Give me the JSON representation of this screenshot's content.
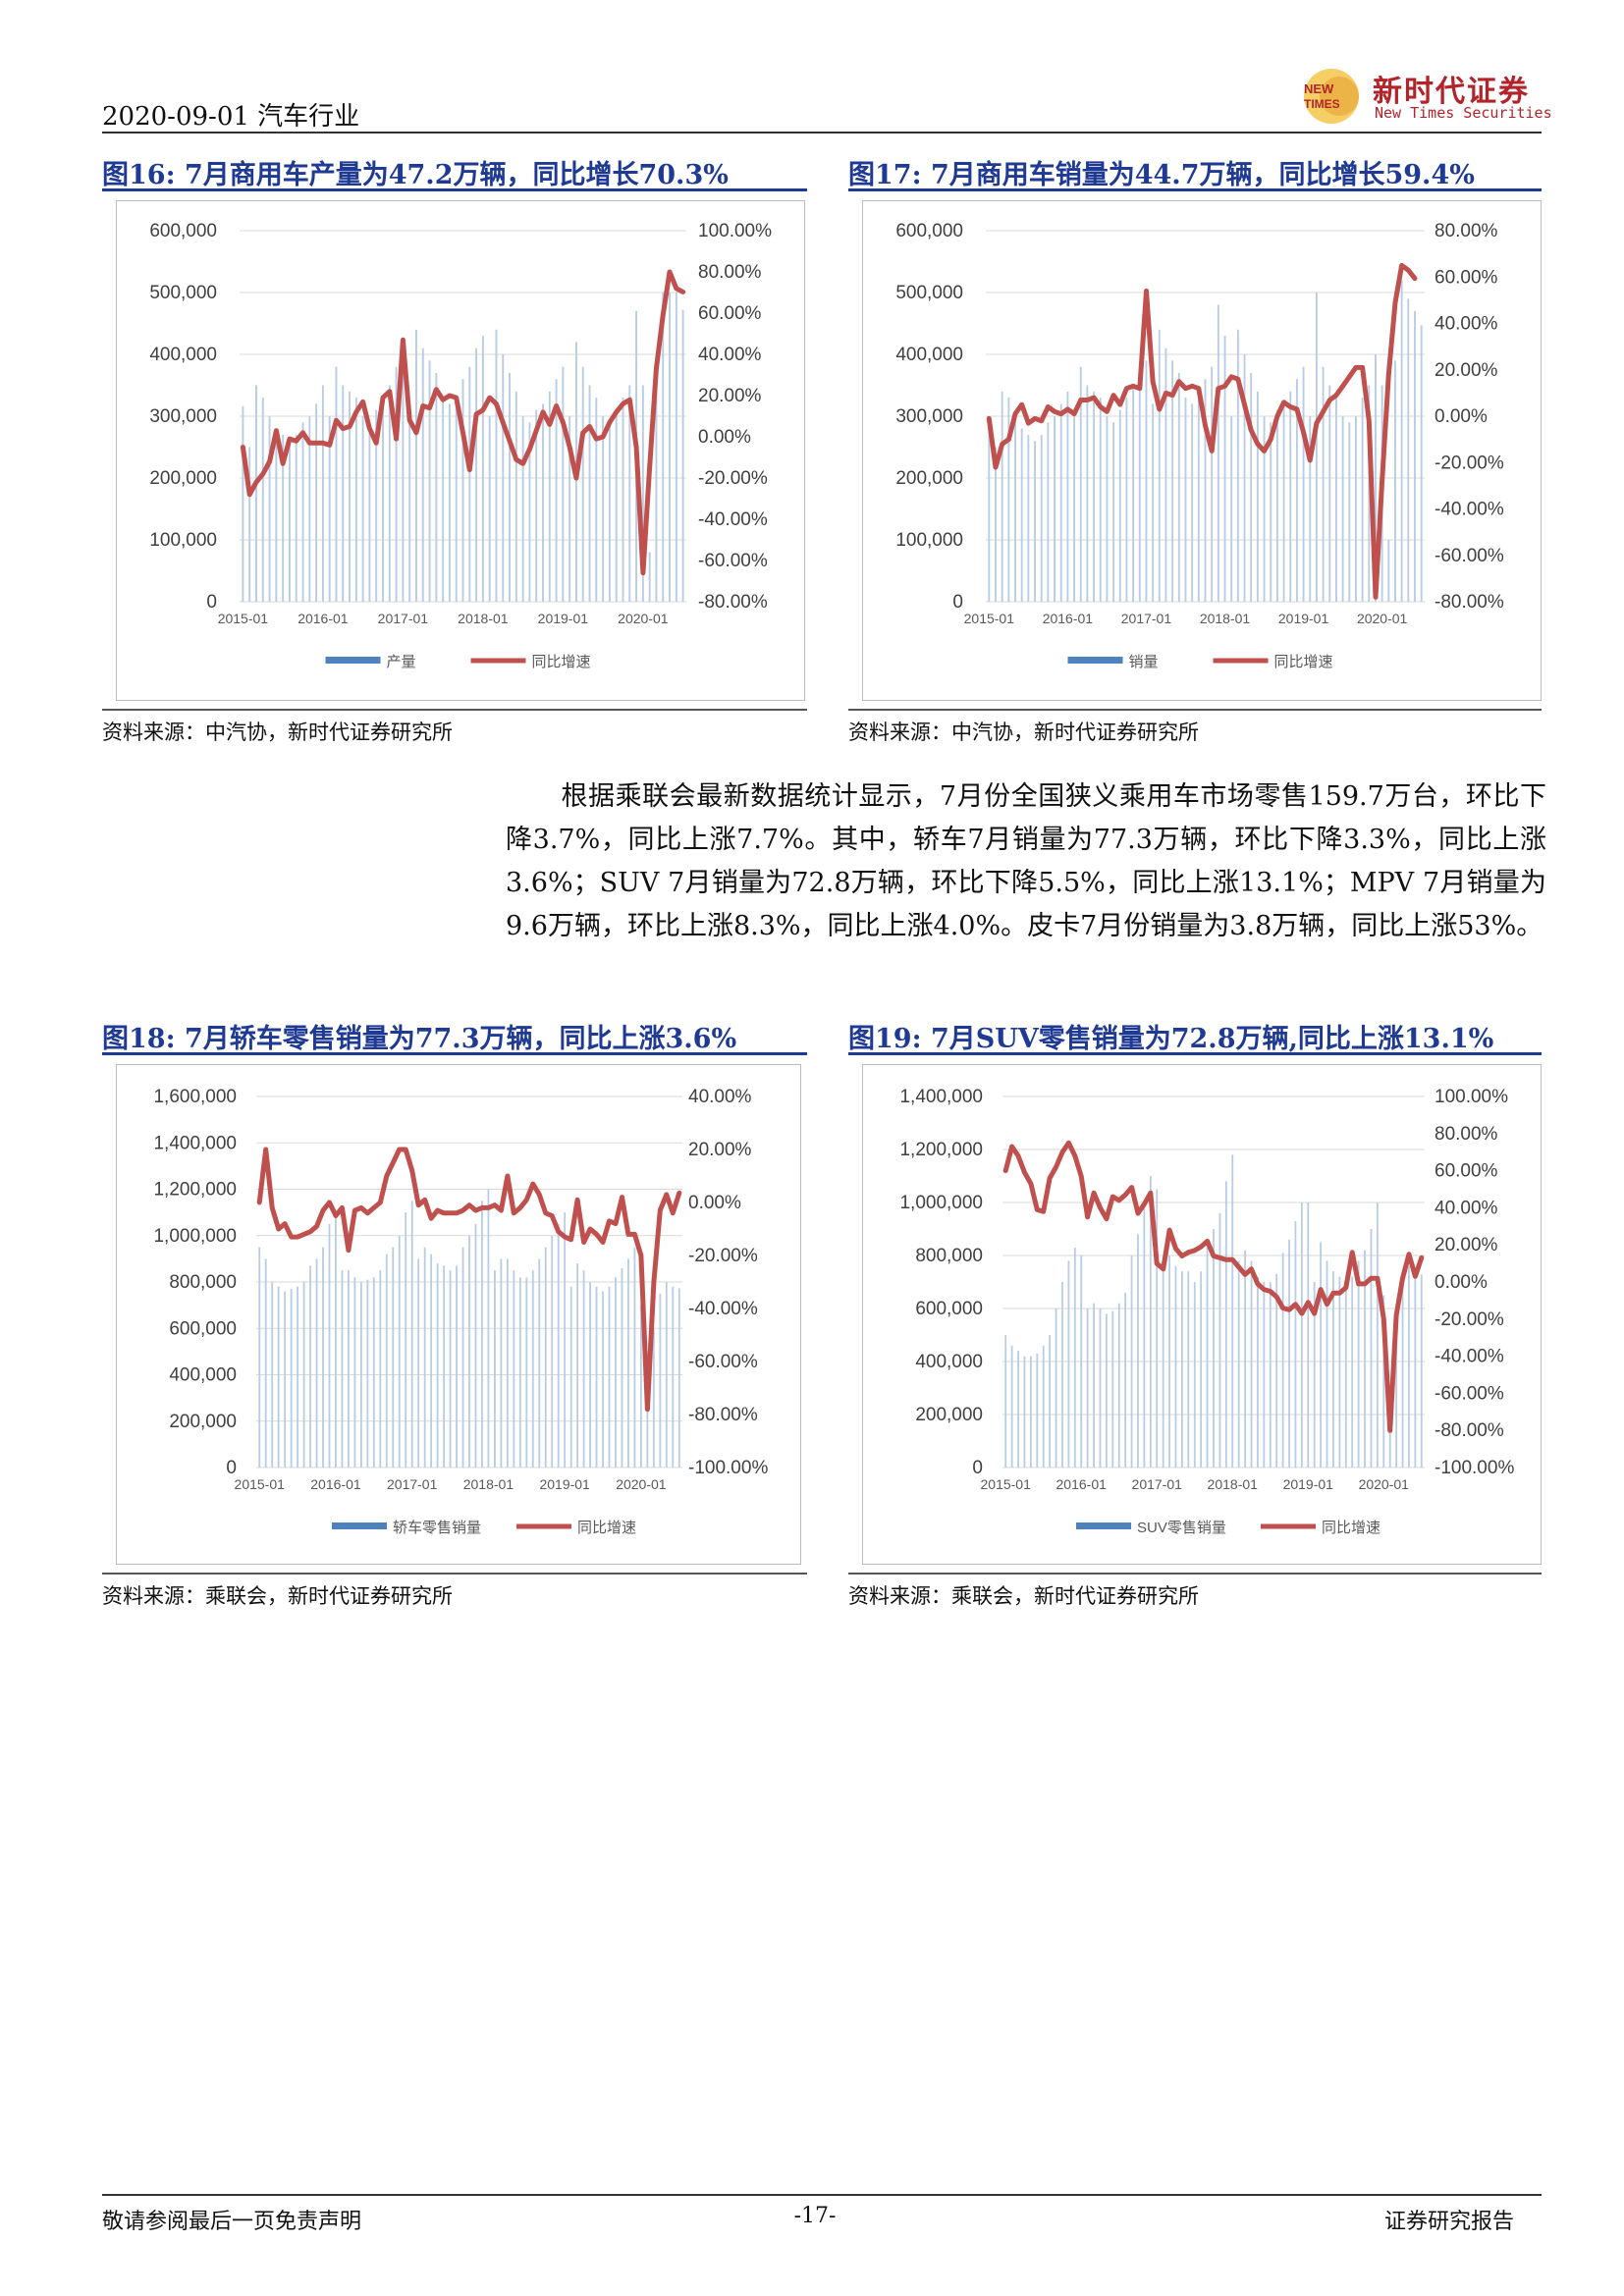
{
  "header": {
    "date_sector": "2020-09-01 汽车行业",
    "logo_badge_top": "NEW",
    "logo_badge_bottom": "TIMES",
    "logo_name": "新时代证券",
    "logo_en": "New Times Securities"
  },
  "figures": [
    {
      "title": "图16:   7月商用车产量为47.2万辆，同比增长70.3%",
      "source": "资料来源：中汽协，新时代证券研究所",
      "chart_data": {
        "type": "bar+line",
        "x_ticks": [
          "2015-01",
          "2016-01",
          "2017-01",
          "2018-01",
          "2019-01",
          "2020-01"
        ],
        "left_axis": {
          "ticks": [
            "600,000",
            "500,000",
            "400,000",
            "300,000",
            "200,000",
            "100,000",
            "0"
          ],
          "min": 0,
          "max": 600000
        },
        "right_axis": {
          "ticks": [
            "100.00%",
            "80.00%",
            "60.00%",
            "40.00%",
            "20.00%",
            "0.00%",
            "-20.00%",
            "-40.00%",
            "-60.00%",
            "-80.00%"
          ],
          "min": -80,
          "max": 100
        },
        "legend": [
          "产量",
          "同比增速"
        ],
        "bars": [
          316000,
          250000,
          350000,
          330000,
          300000,
          280000,
          270000,
          260000,
          270000,
          290000,
          300000,
          320000,
          350000,
          300000,
          380000,
          350000,
          340000,
          330000,
          300000,
          290000,
          310000,
          330000,
          350000,
          380000,
          400000,
          320000,
          440000,
          410000,
          390000,
          370000,
          330000,
          320000,
          330000,
          360000,
          380000,
          410000,
          430000,
          300000,
          440000,
          400000,
          370000,
          340000,
          300000,
          290000,
          310000,
          320000,
          340000,
          360000,
          380000,
          300000,
          420000,
          380000,
          350000,
          330000,
          300000,
          290000,
          300000,
          330000,
          350000,
          470000,
          350000,
          80000,
          380000,
          500000,
          500000,
          500000,
          472000
        ],
        "line": [
          -5,
          -28,
          -22,
          -18,
          -12,
          3,
          -13,
          -1,
          -2,
          2,
          -3,
          -3,
          -3,
          -4,
          8,
          4,
          5,
          12,
          17,
          4,
          -3,
          19,
          22,
          -1,
          47,
          8,
          2,
          15,
          14,
          23,
          18,
          20,
          19,
          2,
          -16,
          11,
          13,
          19,
          16,
          7,
          -2,
          -11,
          -13,
          -6,
          3,
          12,
          6,
          15,
          7,
          -5,
          -20,
          2,
          5,
          -1,
          0,
          7,
          12,
          16,
          18,
          -5,
          -66,
          -15,
          33,
          59,
          80,
          72,
          70.3
        ]
      }
    },
    {
      "title": "图17:   7月商用车销量为44.7万辆，同比增长59.4%",
      "source": "资料来源：中汽协，新时代证券研究所",
      "chart_data": {
        "type": "bar+line",
        "x_ticks": [
          "2015-01",
          "2016-01",
          "2017-01",
          "2018-01",
          "2019-01",
          "2020-01"
        ],
        "left_axis": {
          "ticks": [
            "600,000",
            "500,000",
            "400,000",
            "300,000",
            "200,000",
            "100,000",
            "0"
          ],
          "min": 0,
          "max": 600000
        },
        "right_axis": {
          "ticks": [
            "80.00%",
            "60.00%",
            "40.00%",
            "20.00%",
            "0.00%",
            "-20.00%",
            "-40.00%",
            "-60.00%",
            "-80.00%"
          ],
          "min": -80,
          "max": 80
        },
        "legend": [
          "销量",
          "同比增速"
        ],
        "bars": [
          300000,
          250000,
          340000,
          330000,
          300000,
          280000,
          270000,
          260000,
          270000,
          290000,
          300000,
          320000,
          340000,
          300000,
          380000,
          350000,
          340000,
          330000,
          300000,
          290000,
          310000,
          330000,
          350000,
          380000,
          390000,
          320000,
          440000,
          410000,
          390000,
          370000,
          330000,
          320000,
          330000,
          360000,
          380000,
          480000,
          430000,
          300000,
          440000,
          400000,
          370000,
          340000,
          300000,
          290000,
          310000,
          320000,
          340000,
          360000,
          380000,
          300000,
          500000,
          380000,
          350000,
          330000,
          300000,
          290000,
          300000,
          330000,
          350000,
          400000,
          350000,
          100000,
          390000,
          520000,
          490000,
          470000,
          447000
        ],
        "line": [
          -1,
          -22,
          -12,
          -10,
          1,
          5,
          -3,
          -1,
          -2,
          4,
          2,
          1,
          3,
          1,
          7,
          7,
          8,
          4,
          2,
          9,
          5,
          12,
          13,
          12,
          54,
          15,
          3,
          10,
          9,
          15,
          12,
          13,
          12,
          -4,
          -15,
          12,
          13,
          17,
          16,
          5,
          -6,
          -12,
          -15,
          -10,
          0,
          6,
          4,
          3,
          -7,
          -19,
          -3,
          2,
          7,
          9,
          13,
          17,
          21,
          21,
          -2,
          -78,
          -28,
          18,
          49,
          65,
          63,
          59.4
        ]
      }
    },
    {
      "title": "图18:   7月轿车零售销量为77.3万辆，同比上涨3.6%",
      "source": "资料来源：乘联会，新时代证券研究所",
      "chart_data": {
        "type": "bar+line",
        "x_ticks": [
          "2015-01",
          "2016-01",
          "2017-01",
          "2018-01",
          "2019-01",
          "2020-01"
        ],
        "left_axis": {
          "ticks": [
            "1,600,000",
            "1,400,000",
            "1,200,000",
            "1,000,000",
            "800,000",
            "600,000",
            "400,000",
            "200,000",
            "0"
          ],
          "min": 0,
          "max": 1600000
        },
        "right_axis": {
          "ticks": [
            "40.00%",
            "20.00%",
            "0.00%",
            "-20.00%",
            "-40.00%",
            "-60.00%",
            "-80.00%",
            "-100.00%"
          ],
          "min": -100,
          "max": 40
        },
        "legend": [
          "轿车零售销量",
          "同比增速"
        ],
        "bars": [
          950000,
          900000,
          800000,
          780000,
          760000,
          770000,
          780000,
          800000,
          870000,
          900000,
          950000,
          1050000,
          1100000,
          850000,
          850000,
          820000,
          800000,
          810000,
          820000,
          850000,
          920000,
          950000,
          1000000,
          1100000,
          1150000,
          900000,
          950000,
          920000,
          880000,
          870000,
          850000,
          870000,
          950000,
          1000000,
          1050000,
          1150000,
          1200000,
          850000,
          900000,
          900000,
          850000,
          820000,
          820000,
          850000,
          900000,
          950000,
          1000000,
          1050000,
          1100000,
          780000,
          880000,
          850000,
          800000,
          780000,
          760000,
          780000,
          820000,
          860000,
          900000,
          950000,
          700000,
          250000,
          600000,
          750000,
          800000,
          780000,
          773000
        ],
        "line": [
          0,
          20,
          -2,
          -10,
          -8,
          -13,
          -13,
          -12,
          -11,
          -9,
          -3,
          0,
          -5,
          -2,
          -18,
          -3,
          -2,
          -4,
          -2,
          0,
          10,
          15,
          20,
          20,
          12,
          -1,
          1,
          -6,
          -3,
          -4,
          -4,
          -4,
          -3,
          -1,
          -3,
          -2,
          -2,
          -1,
          -3,
          10,
          -4,
          -2,
          1,
          7,
          3,
          -4,
          -5,
          -11,
          -13,
          -14,
          1,
          -15,
          -10,
          -12,
          -15,
          -7,
          -8,
          2,
          -12,
          -12,
          -20,
          -78,
          -30,
          -3,
          3,
          -4,
          3.6
        ]
      }
    },
    {
      "title": "图19:   7月SUV零售销量为72.8万辆,同比上涨13.1%",
      "source": "资料来源：乘联会，新时代证券研究所",
      "chart_data": {
        "type": "bar+line",
        "x_ticks": [
          "2015-01",
          "2016-01",
          "2017-01",
          "2018-01",
          "2019-01",
          "2020-01"
        ],
        "left_axis": {
          "ticks": [
            "1,400,000",
            "1,200,000",
            "1,000,000",
            "800,000",
            "600,000",
            "400,000",
            "200,000",
            "0"
          ],
          "min": 0,
          "max": 1400000
        },
        "right_axis": {
          "ticks": [
            "100.00%",
            "80.00%",
            "60.00%",
            "40.00%",
            "20.00%",
            "0.00%",
            "-20.00%",
            "-40.00%",
            "-60.00%",
            "-80.00%",
            "-100.00%"
          ],
          "min": -100,
          "max": 100
        },
        "legend": [
          "SUV零售销量",
          "同比增速"
        ],
        "bars": [
          500000,
          460000,
          440000,
          420000,
          420000,
          430000,
          460000,
          500000,
          600000,
          700000,
          780000,
          830000,
          800000,
          600000,
          620000,
          600000,
          580000,
          590000,
          620000,
          660000,
          800000,
          880000,
          980000,
          1100000,
          1050000,
          760000,
          800000,
          760000,
          740000,
          740000,
          700000,
          740000,
          850000,
          900000,
          960000,
          1080000,
          1180000,
          780000,
          820000,
          780000,
          720000,
          700000,
          700000,
          730000,
          810000,
          860000,
          930000,
          1000000,
          1000000,
          700000,
          850000,
          780000,
          740000,
          720000,
          700000,
          720000,
          780000,
          820000,
          900000,
          1000000,
          650000,
          220000,
          520000,
          700000,
          760000,
          750000,
          728000
        ],
        "line": [
          60,
          73,
          68,
          59,
          53,
          39,
          38,
          56,
          62,
          70,
          75,
          68,
          57,
          35,
          48,
          40,
          34,
          46,
          44,
          47,
          51,
          37,
          42,
          48,
          10,
          7,
          28,
          18,
          14,
          16,
          17,
          19,
          22,
          14,
          13,
          12,
          12,
          8,
          4,
          7,
          -1,
          -4,
          -5,
          -8,
          -14,
          -15,
          -12,
          -17,
          -11,
          -17,
          -4,
          -12,
          -6,
          -6,
          -3,
          16,
          -1,
          -1,
          2,
          2,
          -20,
          -80,
          -18,
          2,
          15,
          3,
          13.1
        ]
      }
    }
  ],
  "paragraph": "根据乘联会最新数据统计显示，7月份全国狭义乘用车市场零售159.7万台，环比下降3.7%，同比上涨7.7%。其中，轿车7月销量为77.3万辆，环比下降3.3%，同比上涨3.6%；SUV 7月销量为72.8万辆，环比下降5.5%，同比上涨13.1%；MPV 7月销量为9.6万辆，环比上涨8.3%，同比上涨4.0%。皮卡7月份销量为3.8万辆，同比上涨53%。",
  "footer": {
    "disclaimer": "敬请参阅最后一页免责声明",
    "page_number": "-17-",
    "report_type": "证券研究报告"
  },
  "colors": {
    "bar": "#b8cce4",
    "line": "#c0504d",
    "legend_bar": "#4f81bd",
    "title": "#1f3a93"
  }
}
